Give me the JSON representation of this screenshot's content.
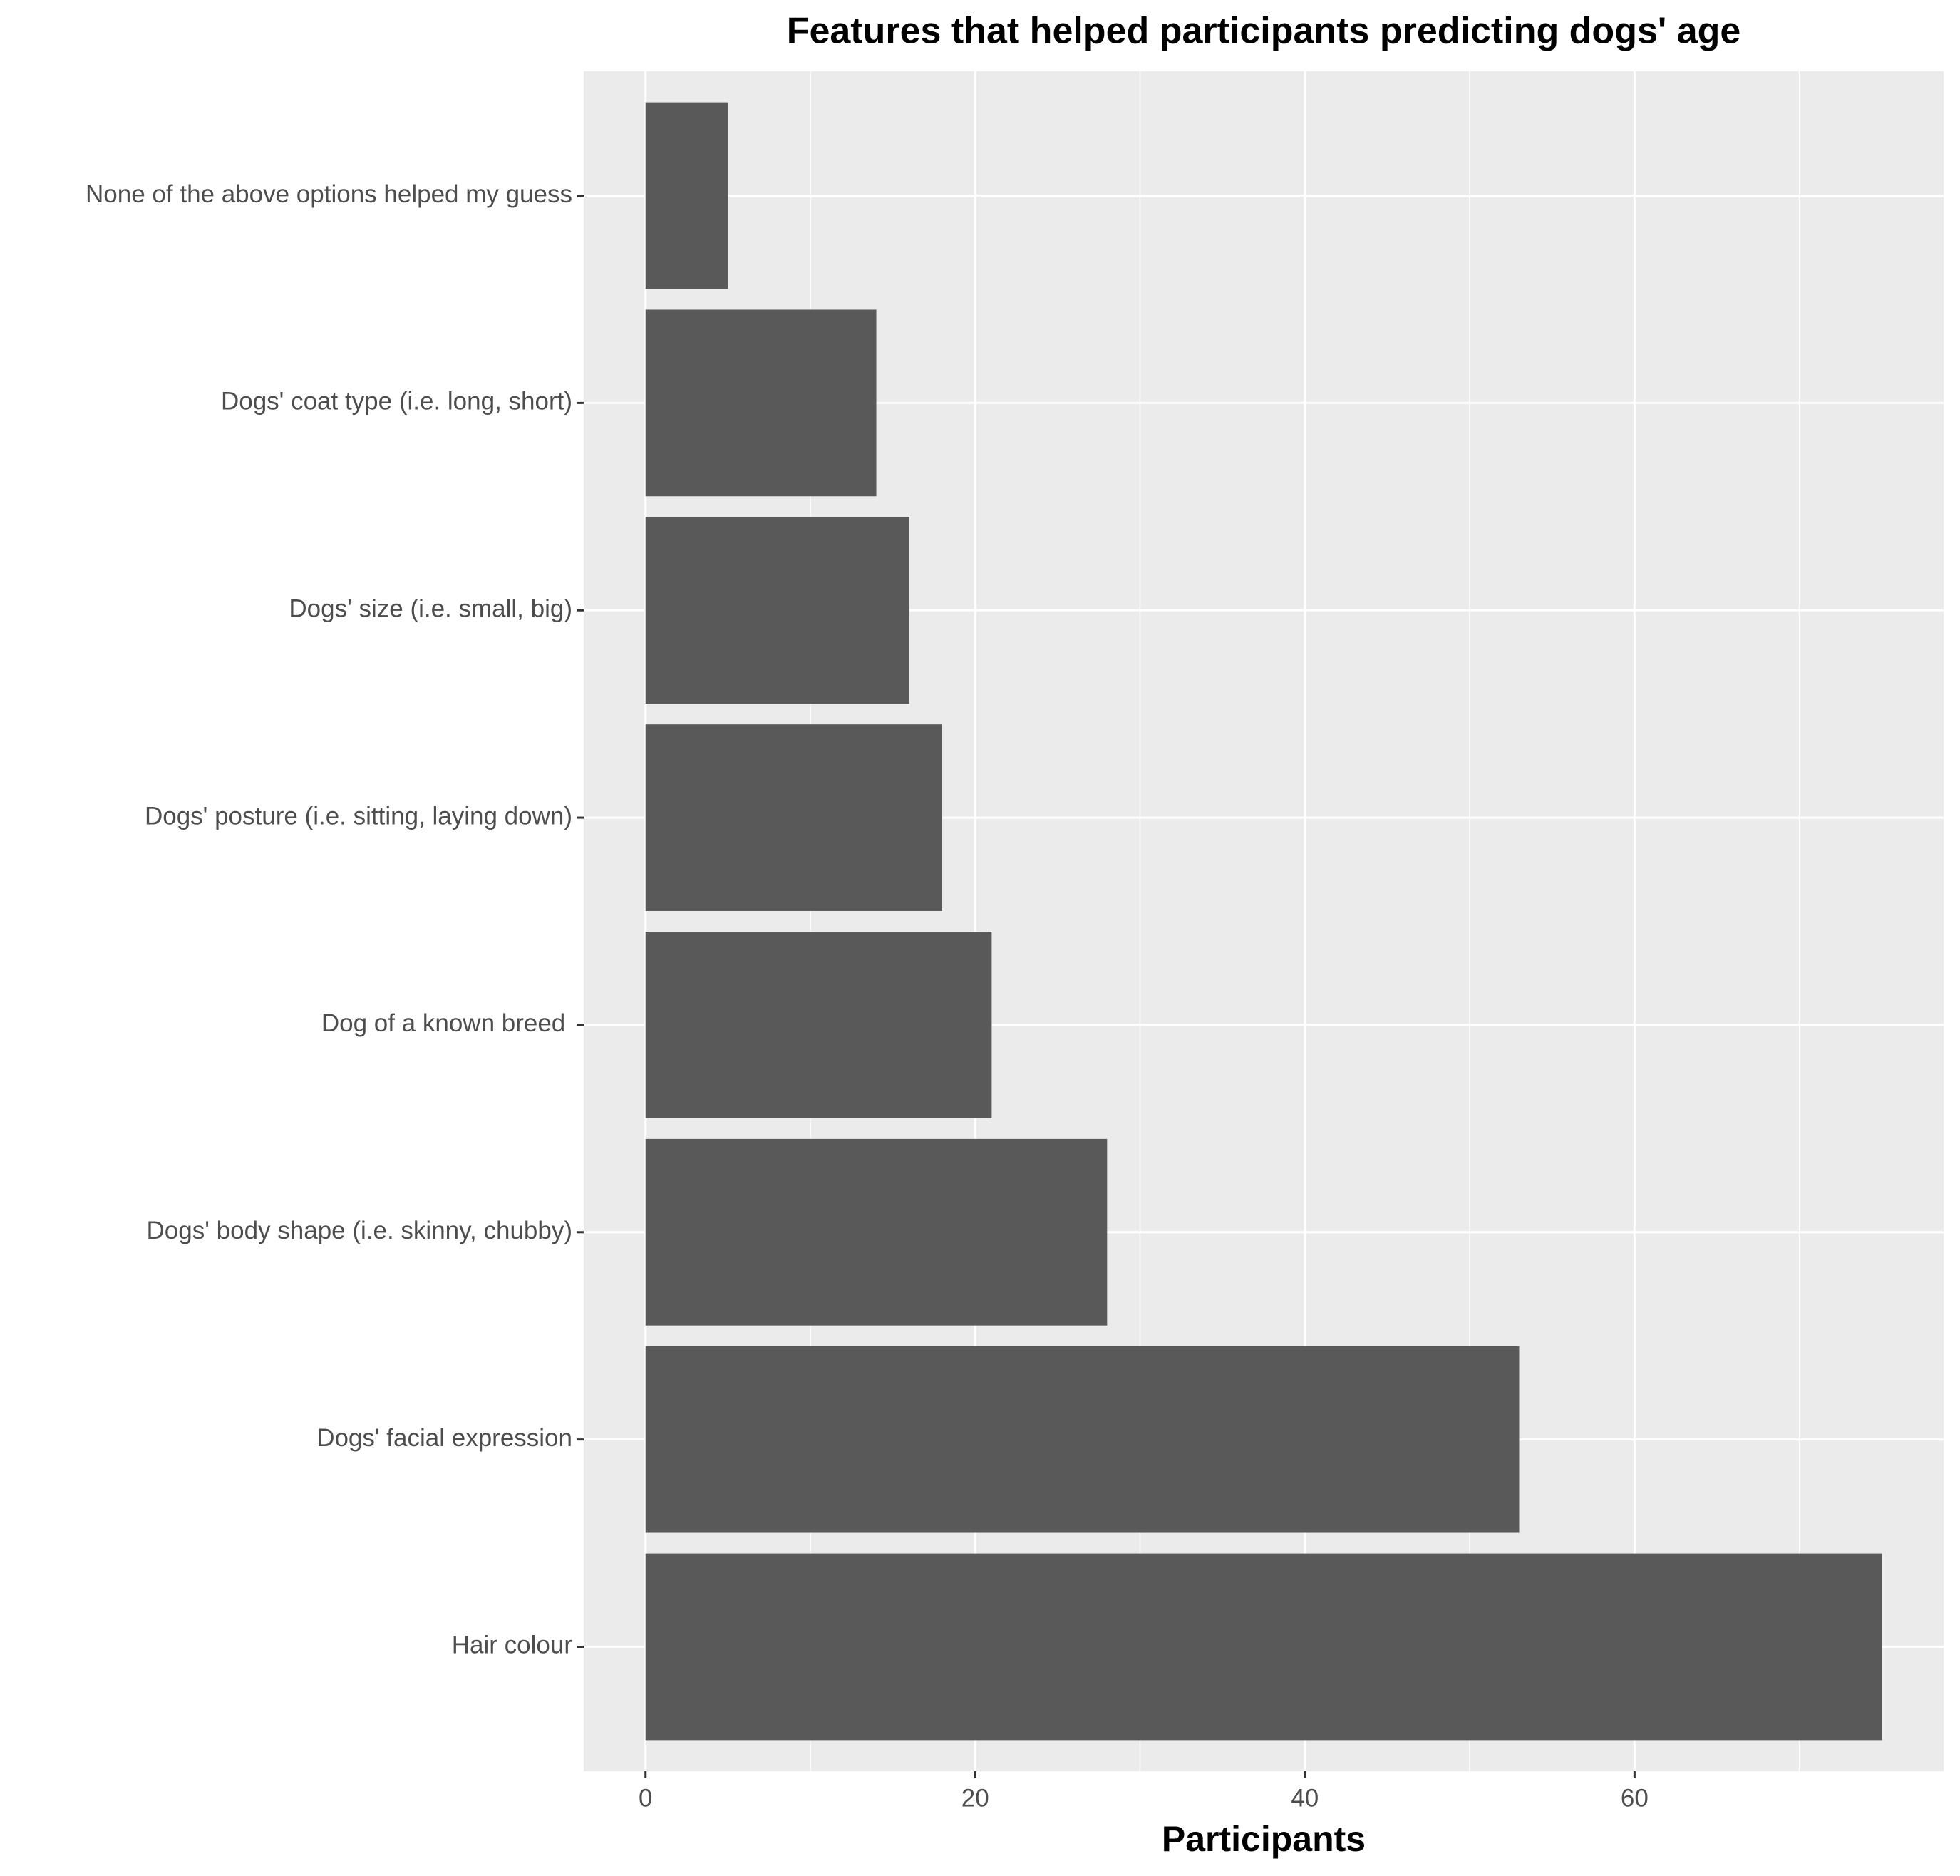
{
  "chart_data": {
    "type": "bar",
    "orientation": "horizontal",
    "title": "Features that helped participants predicting dogs' age",
    "x_label": "Participants",
    "categories": [
      "None of the above options helped my guess",
      "Dogs' coat type (i.e. long, short)",
      "Dogs' size (i.e. small, big)",
      "Dogs' posture (i.e. sitting, laying down)",
      "Dog of a known breed ",
      "Dogs' body shape (i.e. skinny, chubby)",
      "Dogs' facial expression",
      "Hair colour"
    ],
    "values": [
      5,
      14,
      16,
      18,
      21,
      28,
      53,
      75
    ],
    "color": "#595959",
    "xlim": [
      -3.75,
      78.75
    ],
    "xticks": [
      0,
      20,
      40,
      60
    ],
    "x_minor_grid": [
      10,
      30,
      50,
      70
    ],
    "grid": true
  }
}
